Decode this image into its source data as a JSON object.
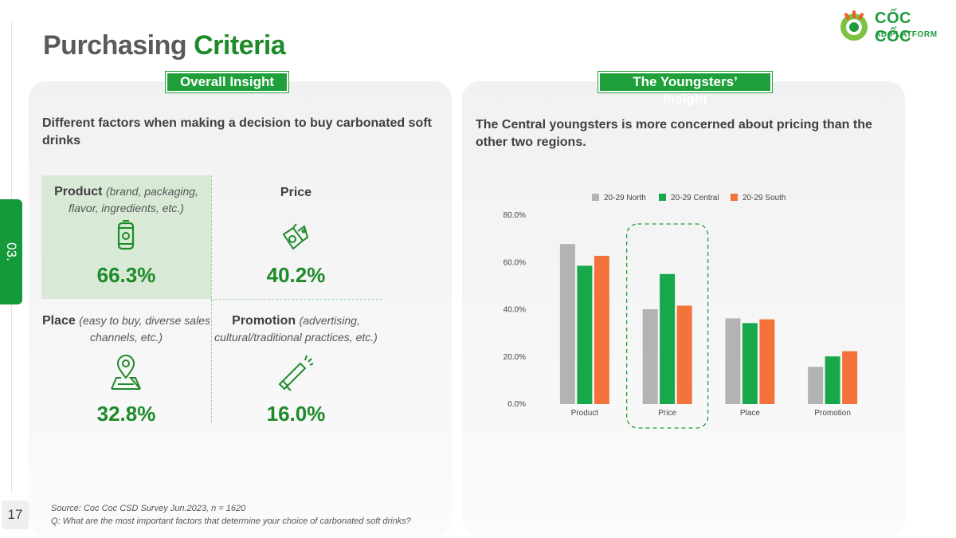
{
  "page": {
    "number": "17",
    "section": "03."
  },
  "title": {
    "part1": "Purchasing",
    "part2": "Criteria"
  },
  "logo": {
    "line1": "CỐC CỐC",
    "line2": "AD PLATFORM"
  },
  "left": {
    "badge": "Overall Insight",
    "description": "Different factors when making a decision to buy carbonated soft drinks",
    "factors": [
      {
        "name": "Product",
        "note": "(brand, packaging, flavor, ingredients, etc.)",
        "value": "66.3%",
        "icon": "soda-can-icon"
      },
      {
        "name": "Price",
        "note": "",
        "value": "40.2%",
        "icon": "price-tag-icon"
      },
      {
        "name": "Place",
        "note": "(easy to buy, diverse sales channels, etc.)",
        "value": "32.8%",
        "icon": "map-pin-icon"
      },
      {
        "name": "Promotion",
        "note": "(advertising, cultural/traditional practices, etc.)",
        "value": "16.0%",
        "icon": "megaphone-icon"
      }
    ],
    "source_line1": "Source: Coc Coc CSD Survey Jun.2023, n = 1620",
    "source_line2": "Q: What are the most important factors that determine your choice of carbonated soft drinks?"
  },
  "right": {
    "badge": "The Youngsters’ Insight",
    "description": "The Central youngsters is more concerned about pricing than the other two regions."
  },
  "colors": {
    "green_dark": "#1f8a2a",
    "green": "#1aa64a",
    "grey": "#b3b3b3",
    "orange": "#f5733a"
  },
  "chart_data": {
    "type": "bar",
    "categories": [
      "Product",
      "Price",
      "Place",
      "Promotion"
    ],
    "series": [
      {
        "name": "20-29 North",
        "color": "#b3b3b3",
        "values": [
          67.8,
          40.2,
          36.3,
          15.8
        ]
      },
      {
        "name": "20-29 Central",
        "color": "#18a84c",
        "values": [
          58.6,
          55.1,
          34.3,
          20.2
        ]
      },
      {
        "name": "20-29 South",
        "color": "#f4733b",
        "values": [
          62.8,
          41.7,
          35.9,
          22.4
        ]
      }
    ],
    "ylim": [
      0,
      80
    ],
    "yticks": [
      "0.0%",
      "20.0%",
      "40.0%",
      "60.0%",
      "80.0%"
    ],
    "ytick_values": [
      0,
      20,
      40,
      60,
      80
    ],
    "legend": "top",
    "highlight_category": "Price",
    "grid": false
  }
}
